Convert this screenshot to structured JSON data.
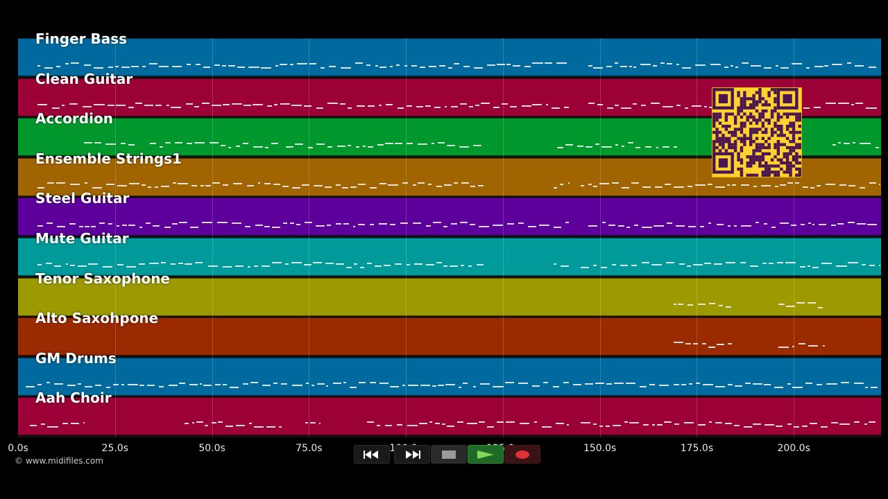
{
  "app": {
    "copyright": "© www.midifiles.com"
  },
  "tracks": [
    {
      "name": "Finger Bass",
      "color": "#006a9e"
    },
    {
      "name": "Clean Guitar",
      "color": "#9b0036"
    },
    {
      "name": "Accordion",
      "color": "#00982c"
    },
    {
      "name": "Ensemble Strings1",
      "color": "#a06400"
    },
    {
      "name": "Steel Guitar",
      "color": "#5d009b"
    },
    {
      "name": "Mute Guitar",
      "color": "#009a9a"
    },
    {
      "name": "Tenor Saxophone",
      "color": "#9c9a00"
    },
    {
      "name": "Alto Saxohpone",
      "color": "#9a2a00"
    },
    {
      "name": "GM Drums",
      "color": "#006a9e"
    },
    {
      "name": "Aah Choir",
      "color": "#9b0036"
    }
  ],
  "time_axis": {
    "ticks": [
      "0.0s",
      "25.0s",
      "50.0s",
      "75.0s",
      "100.0s",
      "125.0s",
      "150.0s",
      "175.0s",
      "200.0s"
    ],
    "tick_values": [
      0,
      25,
      50,
      75,
      100,
      125,
      150,
      175,
      200
    ],
    "max_seconds": 222.5
  },
  "note_segments": [
    [
      [
        5,
        142
      ],
      [
        147,
        222
      ]
    ],
    [
      [
        5,
        142
      ],
      [
        147,
        222
      ]
    ],
    [
      [
        17,
        30
      ],
      [
        34,
        67
      ],
      [
        69,
        120
      ],
      [
        139,
        170
      ],
      [
        210,
        222
      ]
    ],
    [
      [
        5,
        120
      ],
      [
        138,
        142
      ],
      [
        145,
        222
      ]
    ],
    [
      [
        5,
        142
      ],
      [
        147,
        222
      ]
    ],
    [
      [
        5,
        120
      ],
      [
        138,
        142
      ],
      [
        145,
        222
      ]
    ],
    [
      [
        169,
        184
      ],
      [
        196,
        208
      ]
    ],
    [
      [
        169,
        184
      ],
      [
        196,
        208
      ]
    ],
    [
      [
        2,
        142
      ],
      [
        143,
        222
      ]
    ],
    [
      [
        3,
        17
      ],
      [
        43,
        68
      ],
      [
        74,
        78
      ],
      [
        90,
        142
      ],
      [
        145,
        222
      ]
    ]
  ],
  "transport": {
    "rewind_icon": "rewind-icon",
    "fast_forward_icon": "fast-forward-icon",
    "stop_icon": "stop-icon",
    "play_icon": "play-icon",
    "record_icon": "record-icon"
  },
  "qr_code": {
    "description_icon": "qr-code-icon"
  }
}
